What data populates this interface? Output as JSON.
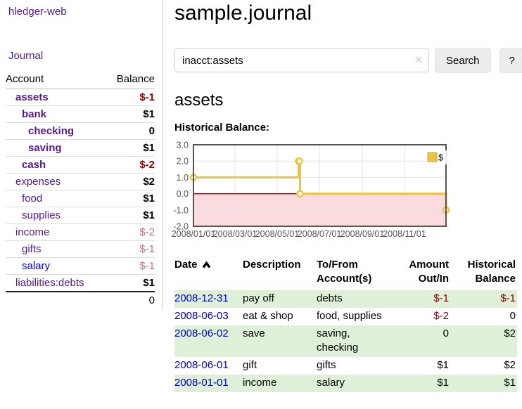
{
  "app": {
    "brand": "hledger-web"
  },
  "colors": {
    "link-visited": "#551a8b",
    "link-unvisited": "#0000dd",
    "neg-strong": "#8b0000",
    "neg-soft": "#c4737d",
    "row-green": "#dff0d8",
    "button-bg": "#ececec",
    "divider": "#cccccc",
    "tick-color": "#545454"
  },
  "sidebar": {
    "nav": [
      {
        "label": "Journal"
      }
    ],
    "table": {
      "headers": [
        "Account",
        "Balance"
      ],
      "accounts": [
        {
          "name": "assets",
          "depth": 1,
          "bold": true,
          "balance": "$-1",
          "balance_class": "neg-strong"
        },
        {
          "name": "bank",
          "depth": 2,
          "bold": true,
          "balance": "$1",
          "balance_class": ""
        },
        {
          "name": "checking",
          "depth": 3,
          "bold": true,
          "balance": "0",
          "balance_class": ""
        },
        {
          "name": "saving",
          "depth": 3,
          "bold": true,
          "balance": "$1",
          "balance_class": ""
        },
        {
          "name": "cash",
          "depth": 2,
          "bold": true,
          "balance": "$-2",
          "balance_class": "neg-strong"
        },
        {
          "name": "expenses",
          "depth": 1,
          "bold": false,
          "balance": "$2",
          "balance_class": ""
        },
        {
          "name": "food",
          "depth": 2,
          "bold": false,
          "balance": "$1",
          "balance_class": ""
        },
        {
          "name": "supplies",
          "depth": 2,
          "bold": false,
          "balance": "$1",
          "balance_class": ""
        },
        {
          "name": "income",
          "depth": 1,
          "bold": false,
          "balance": "$-2",
          "balance_class": "neg-soft"
        },
        {
          "name": "gifts",
          "depth": 2,
          "bold": false,
          "balance": "$-1",
          "balance_class": "neg-soft"
        },
        {
          "name": "salary",
          "depth": 2,
          "bold": false,
          "balance": "$-1",
          "balance_class": "neg-soft",
          "blue": true
        },
        {
          "name": "liabilities:debts",
          "depth": 1,
          "bold": false,
          "balance": "$1",
          "balance_class": ""
        }
      ],
      "total": "0"
    }
  },
  "header": {
    "title": "sample.journal"
  },
  "search": {
    "query": "inacct:assets",
    "clear_icon": "✕",
    "button": "Search",
    "help_button": "?"
  },
  "account_page": {
    "heading": "assets",
    "chart_label": "Historical Balance:"
  },
  "chart_data": {
    "type": "line",
    "step": true,
    "title": "Historical Balance",
    "legend": "$",
    "legend_position": "top-right",
    "grid": true,
    "x_range": [
      "2008-01-01",
      "2008-12-31"
    ],
    "ylim": [
      -2,
      3
    ],
    "y_ticks": [
      3,
      2,
      1,
      0,
      -1,
      -2
    ],
    "x_ticks": [
      "2008/01/01",
      "2008/03/01",
      "2008/05/01",
      "2008/07/01",
      "2008/09/01",
      "2008/11/01"
    ],
    "series": [
      {
        "name": "$",
        "color": "#edc240",
        "points": [
          [
            "2008-01-01",
            1
          ],
          [
            "2008-06-01",
            2
          ],
          [
            "2008-06-02",
            2
          ],
          [
            "2008-06-03",
            0
          ],
          [
            "2008-12-31",
            -1
          ]
        ]
      }
    ],
    "negative_region_color": "#fbdbde",
    "zero_line_color": "#aa0000",
    "grid_color": "#e4e4e4",
    "border_color": "#545454"
  },
  "register": {
    "headers": [
      "Date",
      "Description",
      "To/From\nAccount(s)",
      "Amount\nOut/In",
      "Historical\nBalance"
    ],
    "rows": [
      {
        "date": "2008-12-31",
        "description": "pay off",
        "accounts": "debts",
        "amount": "$-1",
        "amount_negative": true,
        "balance": "$-1",
        "balance_negative": true
      },
      {
        "date": "2008-06-03",
        "description": "eat & shop",
        "accounts": "food, supplies",
        "amount": "$-2",
        "amount_negative": true,
        "balance": "0",
        "balance_negative": false
      },
      {
        "date": "2008-06-02",
        "description": "save",
        "accounts": "saving,\nchecking",
        "amount": "0",
        "amount_negative": false,
        "balance": "$2",
        "balance_negative": false
      },
      {
        "date": "2008-06-01",
        "description": "gift",
        "accounts": "gifts",
        "amount": "$1",
        "amount_negative": false,
        "balance": "$2",
        "balance_negative": false
      },
      {
        "date": "2008-01-01",
        "description": "income",
        "accounts": "salary",
        "amount": "$1",
        "amount_negative": false,
        "balance": "$1",
        "balance_negative": false
      }
    ]
  }
}
